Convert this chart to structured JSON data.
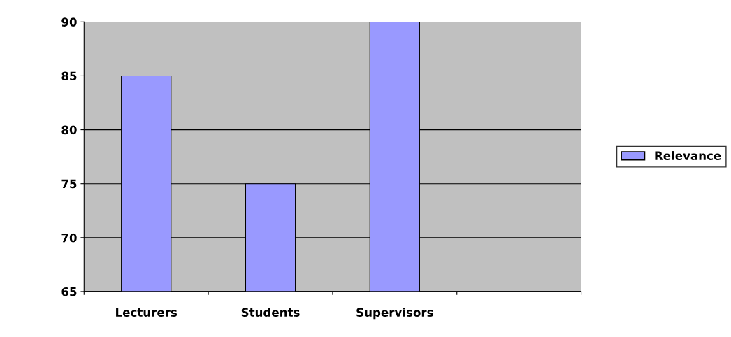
{
  "chart_data": {
    "type": "bar",
    "categories": [
      "Lecturers",
      "Students",
      "Supervisors",
      null
    ],
    "series": [
      {
        "name": "Relevance",
        "color": "#9999ff",
        "values": [
          85,
          75,
          90,
          null
        ]
      }
    ],
    "ylim": [
      65,
      90
    ],
    "yticks": [
      65,
      70,
      75,
      80,
      85,
      90
    ],
    "grid": "y",
    "legend": "right"
  }
}
